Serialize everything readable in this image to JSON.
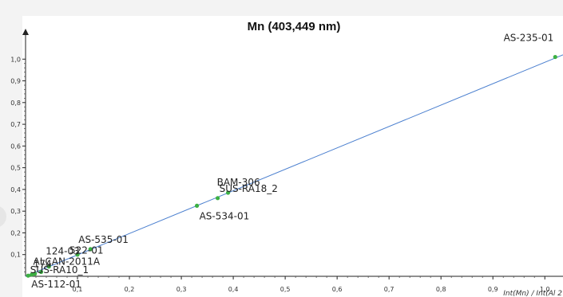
{
  "window": {
    "title": "Mn (403,449 nm)"
  },
  "chart_data": {
    "type": "scatter",
    "title": "Mn (403,449 nm)",
    "xlabel": "Int(Mn) / Int(Al 2",
    "ylabel": "",
    "xlim": [
      0,
      1.035
    ],
    "ylim": [
      0,
      1.1
    ],
    "xticks": [
      "0,1",
      "0,2",
      "0,3",
      "0,4",
      "0,5",
      "0,6",
      "0,7",
      "0,8",
      "0,9",
      "1,0"
    ],
    "xtick_values": [
      0.1,
      0.2,
      0.3,
      0.4,
      0.5,
      0.6,
      0.7,
      0.8,
      0.9,
      1.0
    ],
    "yticks": [
      "0,1",
      "0,2",
      "0,3",
      "0,4",
      "0,5",
      "0,6",
      "0,7",
      "0,8",
      "0,9",
      "1,0"
    ],
    "ytick_values": [
      0.1,
      0.2,
      0.3,
      0.4,
      0.5,
      0.6,
      0.7,
      0.8,
      0.9,
      1.0
    ],
    "grid": false,
    "point_color": "#3cb043",
    "line_color": "#4a7fcf",
    "regression_line": {
      "x": [
        0,
        1.035
      ],
      "y": [
        0,
        1.02
      ]
    },
    "points": [
      {
        "label": "AS-112-01",
        "x": 0.005,
        "y": 0.003
      },
      {
        "label": "SUS-RA10_1",
        "x": 0.012,
        "y": 0.008
      },
      {
        "label": "174",
        "x": 0.018,
        "y": 0.012
      },
      {
        "label": "ALCAN-2011A",
        "x": 0.03,
        "y": 0.02
      },
      {
        "label": "124-03",
        "x": 0.045,
        "y": 0.045
      },
      {
        "label": "522-01",
        "x": 0.1,
        "y": 0.1
      },
      {
        "label": "AS-535-01",
        "x": 0.125,
        "y": 0.125
      },
      {
        "label": "AS-534-01",
        "x": 0.33,
        "y": 0.325
      },
      {
        "label": "SUS-RA18_2",
        "x": 0.37,
        "y": 0.36
      },
      {
        "label": "BAM-306",
        "x": 0.39,
        "y": 0.385
      },
      {
        "label": "AS-235-01",
        "x": 1.02,
        "y": 1.01
      }
    ]
  }
}
